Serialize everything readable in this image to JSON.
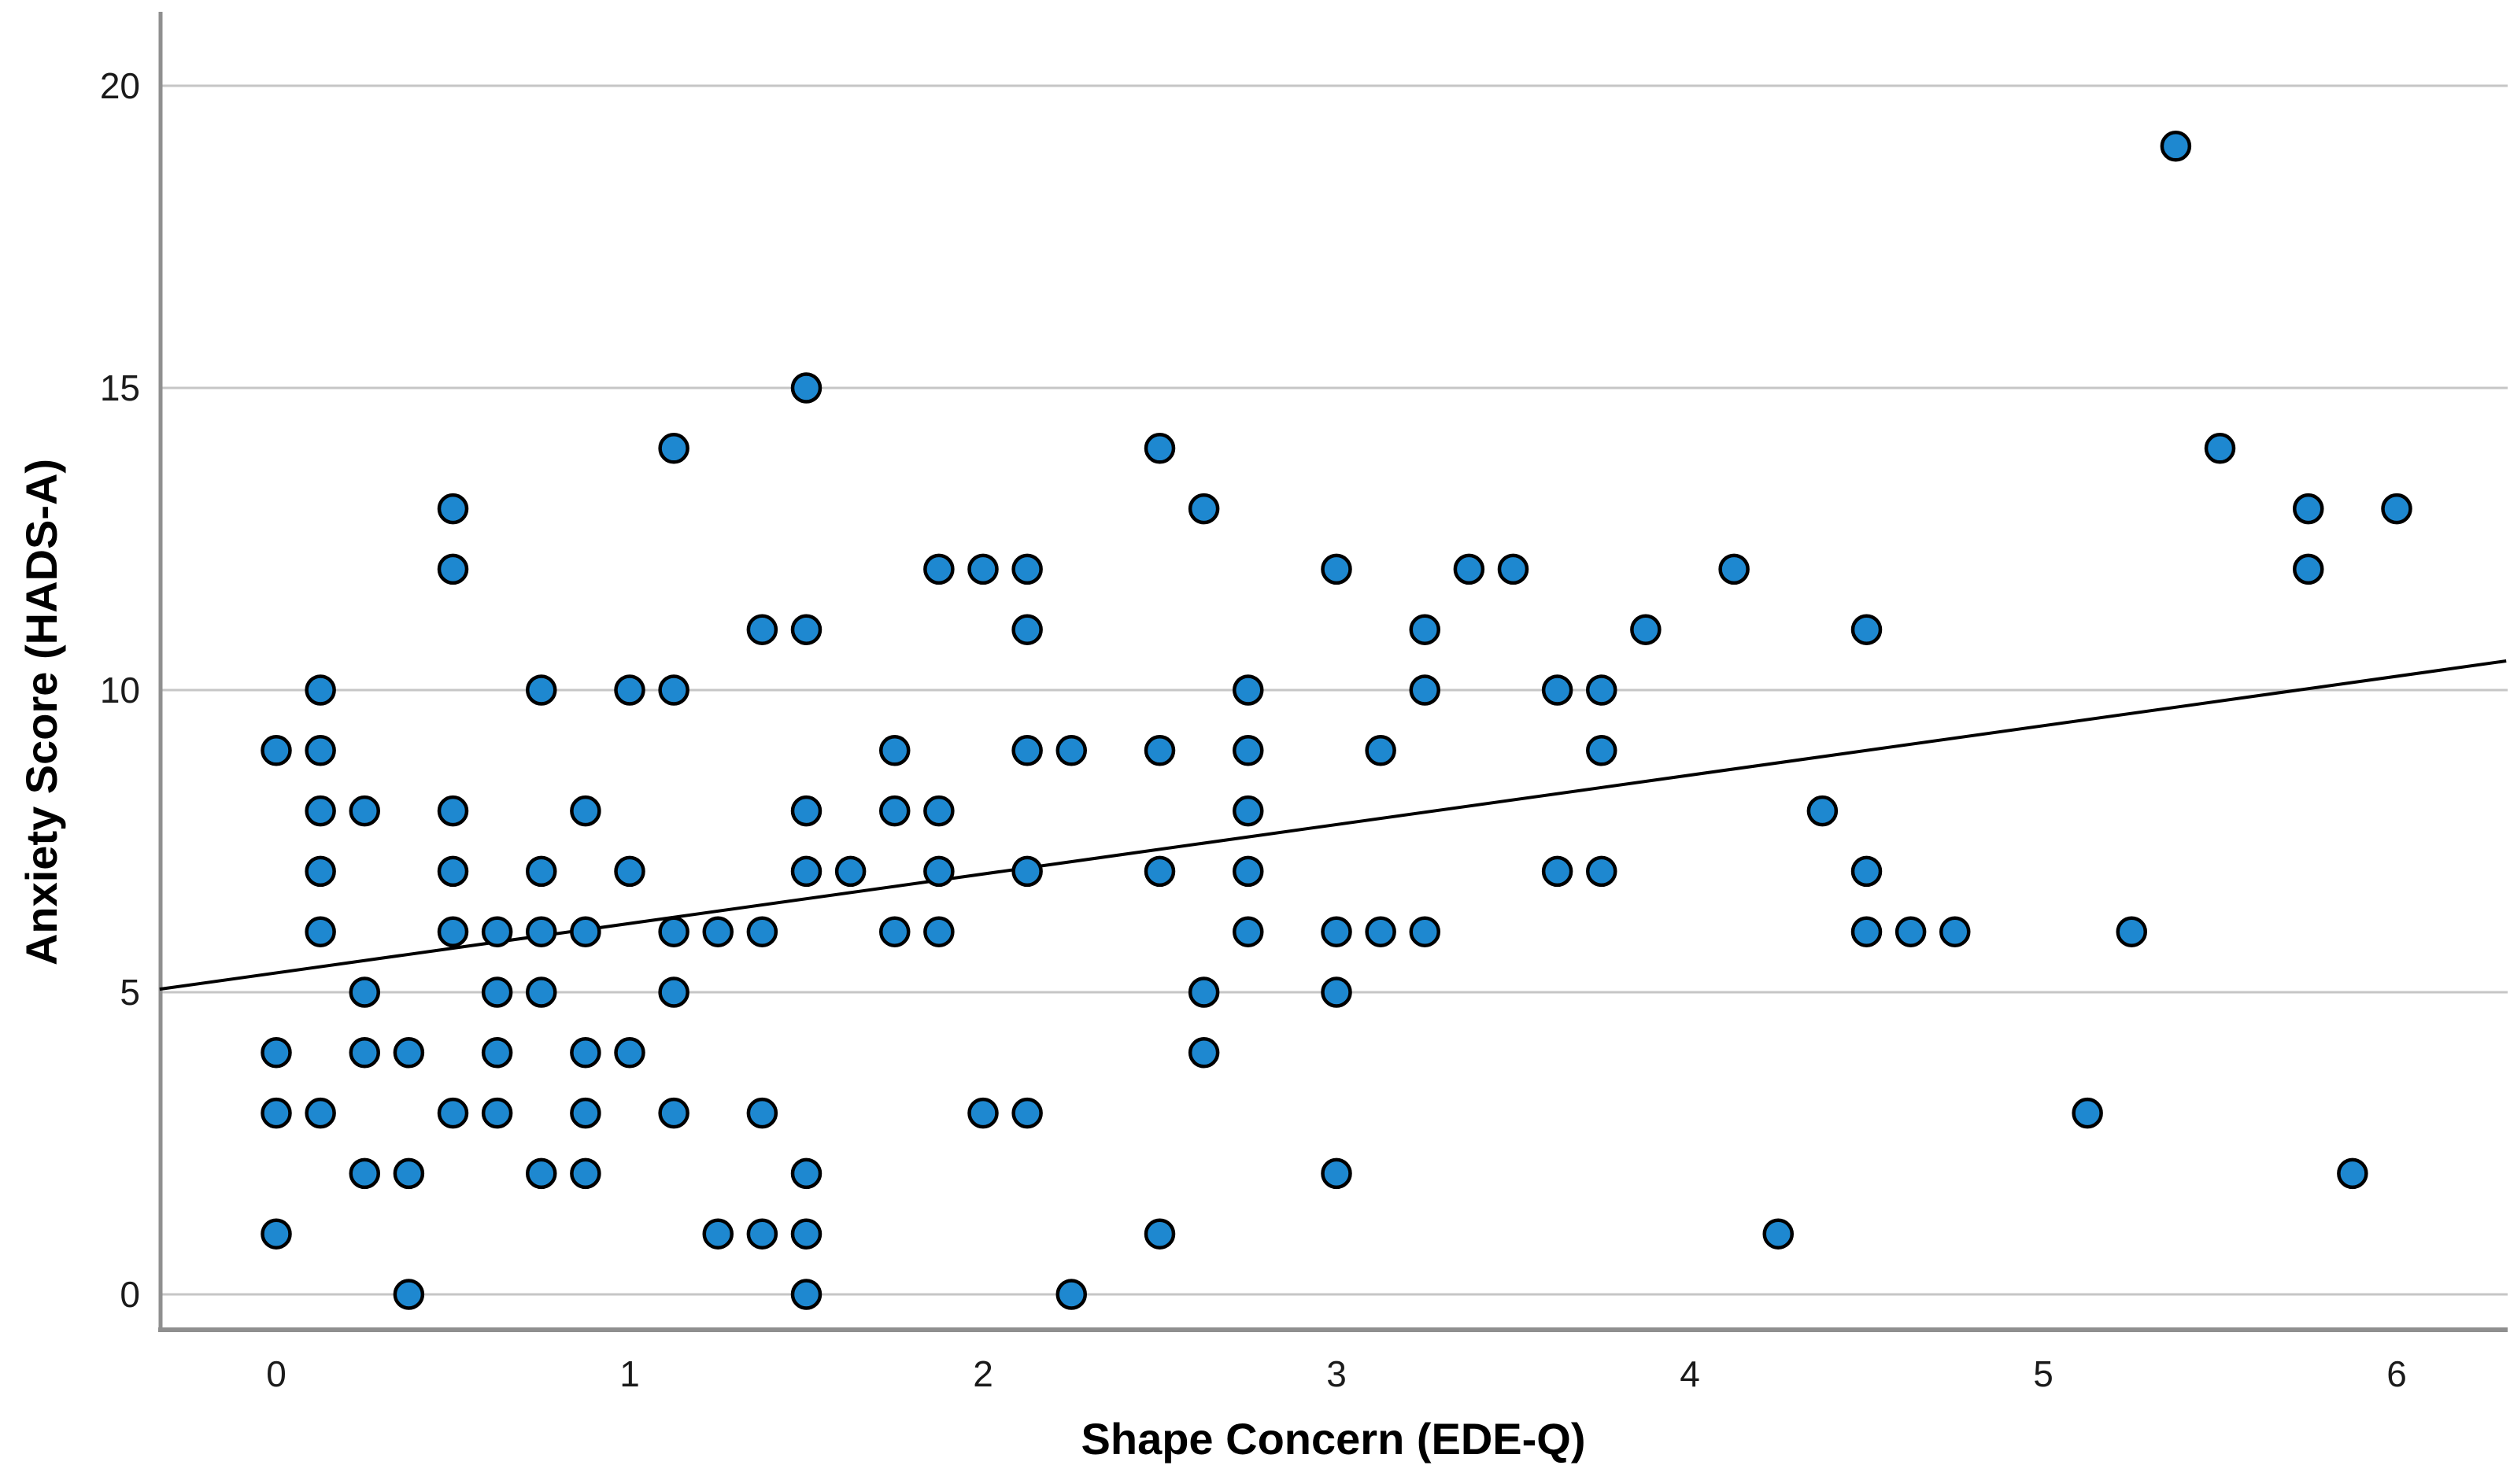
{
  "chart_data": {
    "type": "scatter",
    "title": "",
    "xlabel": "Shape Concern (EDE-Q)",
    "ylabel": "Anxiety Score (HADS-A)",
    "xlim": [
      -0.33,
      6.31
    ],
    "ylim": [
      -0.6,
      21.3
    ],
    "x_ticks": [
      0,
      1,
      2,
      3,
      4,
      5,
      6
    ],
    "y_ticks": [
      0,
      5,
      10,
      15,
      20
    ],
    "grid": "horizontal-only",
    "legend": "none",
    "marker": {
      "shape": "circle",
      "fill_color": "#1e88d0",
      "edge_color": "#000000"
    },
    "gridline_color": "#c6c6c6",
    "axis_line_color": "#8f8f8f",
    "trendline": {
      "type": "linear-fit",
      "color": "#000000",
      "intercept": 5.32,
      "slope": 0.818,
      "x_start": -0.33,
      "x_end": 6.31
    },
    "points": [
      [
        5.375,
        19
      ],
      [
        1.5,
        15
      ],
      [
        1.125,
        14
      ],
      [
        2.5,
        14
      ],
      [
        5.5,
        14
      ],
      [
        0.5,
        13
      ],
      [
        2.625,
        13
      ],
      [
        5.75,
        13
      ],
      [
        6.0,
        13
      ],
      [
        0.5,
        12
      ],
      [
        1.875,
        12
      ],
      [
        2.0,
        12
      ],
      [
        2.125,
        12
      ],
      [
        3.0,
        12
      ],
      [
        3.375,
        12
      ],
      [
        3.5,
        12
      ],
      [
        4.125,
        12
      ],
      [
        5.75,
        12
      ],
      [
        1.375,
        11
      ],
      [
        1.5,
        11
      ],
      [
        2.125,
        11
      ],
      [
        3.25,
        11
      ],
      [
        3.875,
        11
      ],
      [
        4.5,
        11
      ],
      [
        0.125,
        10
      ],
      [
        0.75,
        10
      ],
      [
        1.0,
        10
      ],
      [
        1.125,
        10
      ],
      [
        2.75,
        10
      ],
      [
        3.25,
        10
      ],
      [
        3.625,
        10
      ],
      [
        3.75,
        10
      ],
      [
        0.0,
        9
      ],
      [
        0.125,
        9
      ],
      [
        1.75,
        9
      ],
      [
        2.125,
        9
      ],
      [
        2.25,
        9
      ],
      [
        2.5,
        9
      ],
      [
        2.75,
        9
      ],
      [
        3.125,
        9
      ],
      [
        3.75,
        9
      ],
      [
        0.125,
        8
      ],
      [
        0.25,
        8
      ],
      [
        0.5,
        8
      ],
      [
        0.875,
        8
      ],
      [
        1.5,
        8
      ],
      [
        1.75,
        8
      ],
      [
        1.875,
        8
      ],
      [
        2.75,
        8
      ],
      [
        4.375,
        8
      ],
      [
        0.125,
        7
      ],
      [
        0.5,
        7
      ],
      [
        0.75,
        7
      ],
      [
        1.0,
        7
      ],
      [
        1.5,
        7
      ],
      [
        1.625,
        7
      ],
      [
        1.875,
        7
      ],
      [
        2.125,
        7
      ],
      [
        2.5,
        7
      ],
      [
        2.75,
        7
      ],
      [
        3.625,
        7
      ],
      [
        3.75,
        7
      ],
      [
        4.5,
        7
      ],
      [
        0.125,
        6
      ],
      [
        0.5,
        6
      ],
      [
        0.625,
        6
      ],
      [
        0.75,
        6
      ],
      [
        0.875,
        6
      ],
      [
        1.125,
        6
      ],
      [
        1.25,
        6
      ],
      [
        1.375,
        6
      ],
      [
        1.75,
        6
      ],
      [
        1.875,
        6
      ],
      [
        2.75,
        6
      ],
      [
        3.0,
        6
      ],
      [
        3.125,
        6
      ],
      [
        3.25,
        6
      ],
      [
        4.5,
        6
      ],
      [
        4.625,
        6
      ],
      [
        4.75,
        6
      ],
      [
        5.25,
        6
      ],
      [
        0.25,
        5
      ],
      [
        0.625,
        5
      ],
      [
        0.75,
        5
      ],
      [
        1.125,
        5
      ],
      [
        2.625,
        5
      ],
      [
        3.0,
        5
      ],
      [
        0.0,
        4
      ],
      [
        0.25,
        4
      ],
      [
        0.375,
        4
      ],
      [
        0.625,
        4
      ],
      [
        0.875,
        4
      ],
      [
        1.0,
        4
      ],
      [
        2.625,
        4
      ],
      [
        0.0,
        3
      ],
      [
        0.125,
        3
      ],
      [
        0.5,
        3
      ],
      [
        0.625,
        3
      ],
      [
        0.875,
        3
      ],
      [
        1.125,
        3
      ],
      [
        1.375,
        3
      ],
      [
        2.0,
        3
      ],
      [
        2.125,
        3
      ],
      [
        5.125,
        3
      ],
      [
        0.25,
        2
      ],
      [
        0.375,
        2
      ],
      [
        0.75,
        2
      ],
      [
        0.875,
        2
      ],
      [
        1.5,
        2
      ],
      [
        3.0,
        2
      ],
      [
        5.875,
        2
      ],
      [
        0.0,
        1
      ],
      [
        1.25,
        1
      ],
      [
        1.375,
        1
      ],
      [
        1.5,
        1
      ],
      [
        2.5,
        1
      ],
      [
        4.25,
        1
      ],
      [
        0.375,
        0
      ],
      [
        1.5,
        0
      ],
      [
        2.25,
        0
      ]
    ]
  }
}
